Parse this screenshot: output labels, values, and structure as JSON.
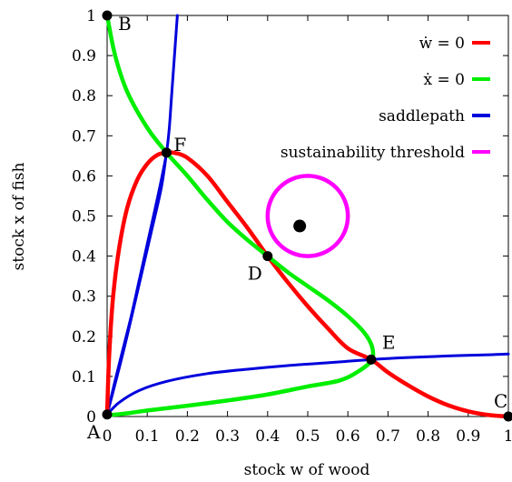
{
  "chart_data": {
    "type": "line",
    "xlabel": "stock w of wood",
    "ylabel": "stock x of fish",
    "xlim": [
      0,
      1
    ],
    "ylim": [
      0,
      1
    ],
    "xticks": [
      "0",
      "0.1",
      "0.2",
      "0.3",
      "0.4",
      "0.5",
      "0.6",
      "0.7",
      "0.8",
      "0.9",
      "1"
    ],
    "yticks": [
      "0",
      "0.1",
      "0.2",
      "0.3",
      "0.4",
      "0.5",
      "0.6",
      "0.7",
      "0.8",
      "0.9",
      "1"
    ],
    "grid": false,
    "legend_position": "top-right",
    "series": [
      {
        "name": "ẇ = 0",
        "color": "#ff0000",
        "x": [
          0.0,
          0.005,
          0.015,
          0.03,
          0.05,
          0.075,
          0.1,
          0.125,
          0.148,
          0.17,
          0.2,
          0.25,
          0.3,
          0.35,
          0.4,
          0.45,
          0.5,
          0.55,
          0.6,
          0.658,
          0.7,
          0.75,
          0.8,
          0.85,
          0.9,
          0.95,
          1.0
        ],
        "y": [
          0.005,
          0.15,
          0.3,
          0.42,
          0.52,
          0.59,
          0.63,
          0.652,
          0.658,
          0.657,
          0.645,
          0.6,
          0.535,
          0.47,
          0.4,
          0.335,
          0.275,
          0.22,
          0.17,
          0.142,
          0.11,
          0.078,
          0.05,
          0.028,
          0.013,
          0.004,
          0.0
        ]
      },
      {
        "name": "ẋ = 0",
        "color": "#00ee00",
        "x": [
          0.0,
          0.02,
          0.05,
          0.1,
          0.148,
          0.2,
          0.25,
          0.3,
          0.35,
          0.4,
          0.45,
          0.5,
          0.55,
          0.6,
          0.64,
          0.66,
          0.66,
          0.63,
          0.58,
          0.5,
          0.4,
          0.3,
          0.2,
          0.1,
          0.05,
          0.0
        ],
        "y": [
          1.0,
          0.9,
          0.81,
          0.72,
          0.658,
          0.6,
          0.54,
          0.485,
          0.44,
          0.4,
          0.36,
          0.325,
          0.29,
          0.25,
          0.21,
          0.175,
          0.142,
          0.115,
          0.09,
          0.075,
          0.055,
          0.04,
          0.027,
          0.015,
          0.008,
          0.003
        ]
      },
      {
        "name": "saddlepath",
        "color": "#0000dd",
        "segments": [
          {
            "x": [
              0.0,
              0.02,
              0.04,
              0.06,
              0.08,
              0.1,
              0.12,
              0.135,
              0.148,
              0.155,
              0.16,
              0.165,
              0.17,
              0.175
            ],
            "y": [
              0.005,
              0.09,
              0.17,
              0.25,
              0.34,
              0.43,
              0.52,
              0.59,
              0.658,
              0.72,
              0.79,
              0.86,
              0.93,
              1.0
            ]
          },
          {
            "x": [
              0.0,
              0.03,
              0.08,
              0.15,
              0.25,
              0.35,
              0.45,
              0.55,
              0.658,
              0.75,
              0.85,
              0.95,
              1.0
            ],
            "y": [
              0.005,
              0.035,
              0.065,
              0.088,
              0.107,
              0.118,
              0.127,
              0.134,
              0.142,
              0.147,
              0.151,
              0.154,
              0.156
            ]
          },
          {
            "x": [
              0.0,
              0.04,
              0.08,
              0.11,
              0.135,
              0.148
            ],
            "y": [
              0.005,
              0.16,
              0.33,
              0.46,
              0.57,
              0.658
            ]
          }
        ]
      },
      {
        "name": "sustainability threshold",
        "color": "#ff00ff",
        "center": [
          0.5,
          0.5
        ],
        "radius_x": 0.1,
        "radius_y": 0.1
      }
    ],
    "points": [
      {
        "label": "A",
        "x": 0.0,
        "y": 0.005
      },
      {
        "label": "B",
        "x": 0.0,
        "y": 1.0
      },
      {
        "label": "C",
        "x": 1.0,
        "y": 0.0
      },
      {
        "label": "D",
        "x": 0.4,
        "y": 0.4
      },
      {
        "label": "E",
        "x": 0.658,
        "y": 0.142
      },
      {
        "label": "F",
        "x": 0.148,
        "y": 0.658
      },
      {
        "label": "",
        "x": 0.48,
        "y": 0.475
      }
    ]
  }
}
